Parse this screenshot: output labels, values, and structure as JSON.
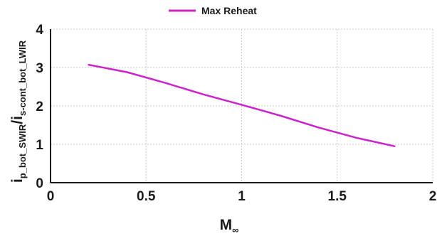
{
  "chart_data": {
    "type": "line",
    "title": "",
    "xlabel": {
      "main": "M",
      "sub": "∞"
    },
    "ylabel": {
      "part1_main": "i",
      "part1_sub": "p_bot_SWIR",
      "slash": "/",
      "part2_main": "i",
      "part2_sub": "s-cont_bot_LWIR"
    },
    "xlim": [
      0,
      2
    ],
    "ylim": [
      0,
      4
    ],
    "x_ticks": [
      0,
      0.5,
      1,
      1.5,
      2
    ],
    "x_tick_labels": [
      "0",
      "0.5",
      "1",
      "1.5",
      "2"
    ],
    "y_ticks": [
      0,
      1,
      2,
      3,
      4
    ],
    "y_tick_labels": [
      "0",
      "1",
      "2",
      "3",
      "4"
    ],
    "grid": true,
    "legend_position": "top-center",
    "series": [
      {
        "name": "Max Reheat",
        "color": "#cc22cc",
        "x": [
          0.2,
          0.4,
          0.6,
          0.8,
          1.0,
          1.2,
          1.4,
          1.6,
          1.8
        ],
        "y": [
          3.07,
          2.88,
          2.6,
          2.3,
          2.03,
          1.75,
          1.44,
          1.17,
          0.95
        ]
      }
    ]
  }
}
